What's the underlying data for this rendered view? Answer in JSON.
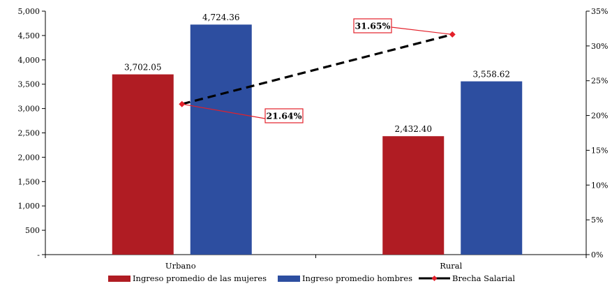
{
  "chart_data": {
    "type": "bar",
    "categories": [
      "Urbano",
      "Rural"
    ],
    "series": [
      {
        "name": "Ingreso promedio de las mujeres",
        "axis": "left",
        "kind": "bar",
        "color": "#b01c23",
        "values": [
          3702.05,
          2432.4
        ],
        "labels": [
          "3,702.05",
          "2,432.40"
        ]
      },
      {
        "name": "Ingreso promedio hombres",
        "axis": "left",
        "kind": "bar",
        "color": "#2d4ea0",
        "values": [
          4724.36,
          3558.62
        ],
        "labels": [
          "4,724.36",
          "3,558.62"
        ]
      },
      {
        "name": "Brecha Salarial",
        "axis": "right",
        "kind": "line",
        "color": "#000000",
        "marker_color": "#e3202a",
        "values": [
          21.64,
          31.65
        ],
        "labels": [
          "21.64%",
          "31.65%"
        ]
      }
    ],
    "y_left": {
      "lim": [
        0,
        5000
      ],
      "ticks": [
        "-",
        "500",
        "1,000",
        "1,500",
        "2,000",
        "2,500",
        "3,000",
        "3,500",
        "4,000",
        "4,500",
        "5,000"
      ]
    },
    "y_right": {
      "lim": [
        0,
        35
      ],
      "ticks": [
        "0%",
        "5%",
        "10%",
        "15%",
        "20%",
        "25%",
        "30%",
        "35%"
      ]
    },
    "grid": false,
    "legend": "bottom"
  }
}
